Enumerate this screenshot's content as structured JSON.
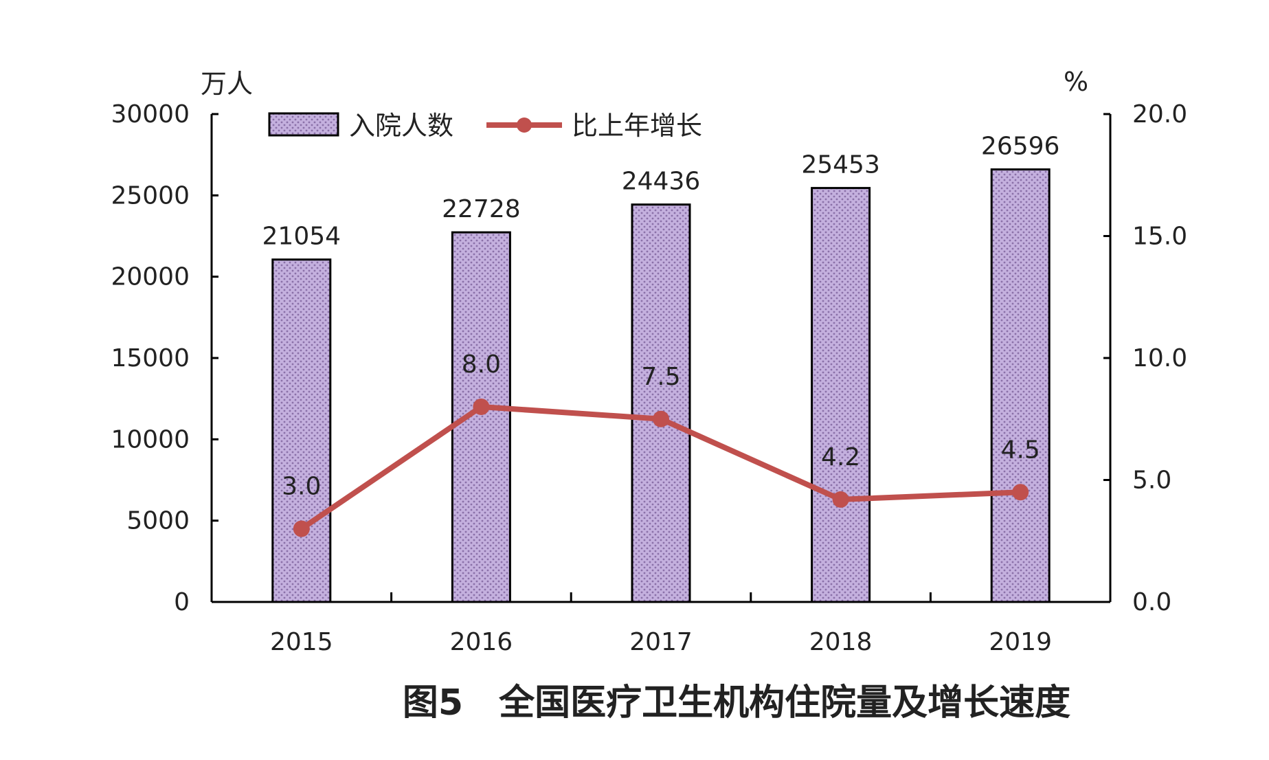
{
  "chart_data": {
    "type": "bar+line",
    "title": "图5　全国医疗卫生机构住院量及增长速度",
    "categories": [
      "2015",
      "2016",
      "2017",
      "2018",
      "2019"
    ],
    "y_left": {
      "label": "万人",
      "range": [
        0,
        30000
      ],
      "ticks": [
        "0",
        "5000",
        "10000",
        "15000",
        "20000",
        "25000",
        "30000"
      ]
    },
    "y_right": {
      "label": "%",
      "range": [
        0,
        20
      ],
      "ticks": [
        "0.0",
        "5.0",
        "10.0",
        "15.0",
        "20.0"
      ]
    },
    "series": [
      {
        "name": "入院人数",
        "type": "bar",
        "axis": "left",
        "values": [
          21054,
          22728,
          24436,
          25453,
          26596
        ],
        "labels": [
          "21054",
          "22728",
          "24436",
          "25453",
          "26596"
        ],
        "color": "#b9a3d6"
      },
      {
        "name": "比上年增长",
        "type": "line",
        "axis": "right",
        "values": [
          3.0,
          8.0,
          7.5,
          4.2,
          4.5
        ],
        "labels": [
          "3.0",
          "8.0",
          "7.5",
          "4.2",
          "4.5"
        ],
        "color": "#c0504d"
      }
    ],
    "legend": "top-left",
    "grid": false
  }
}
